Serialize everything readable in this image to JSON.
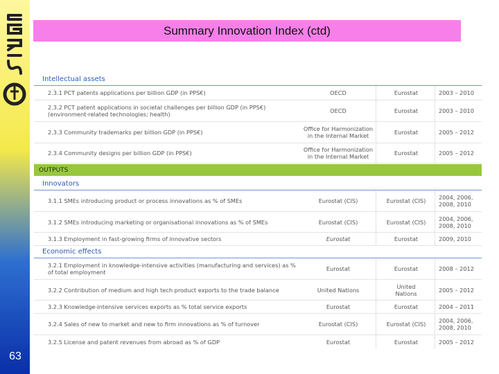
{
  "slide": {
    "title": "Summary Innovation Index (ctd)",
    "page_number": "63",
    "logo_text": "CERIS"
  },
  "table": {
    "intellectual_assets": {
      "label": "Intellectual assets",
      "rows": [
        {
          "indicator": "2.3.1 PCT patents applications per billion GDP (in PPS€)",
          "source": "OECD",
          "database": "Eurostat",
          "years": "2003 – 2010"
        },
        {
          "indicator": "2.3.2 PCT patent applications in societal challenges per billion GDP (in PPS€)\n(environment-related technologies; health)",
          "source": "OECD",
          "database": "Eurostat",
          "years": "2003 – 2010"
        },
        {
          "indicator": "2.3.3 Community trademarks per billion GDP (in PPS€)",
          "source": "Office for Harmonization\nin the Internal Market",
          "database": "Eurostat",
          "years": "2005 – 2012"
        },
        {
          "indicator": "2.3.4 Community designs per billion GDP (in PPS€)",
          "source": "Office for Harmonization\nin the Internal Market",
          "database": "Eurostat",
          "years": "2005 – 2012"
        }
      ]
    },
    "outputs_label": "OUTPUTS",
    "innovators": {
      "label": "Innovators",
      "rows": [
        {
          "indicator": "3.1.1 SMEs introducing product or process innovations as % of SMEs",
          "source": "Eurostat (CIS)",
          "database": "Eurostat (CIS)",
          "years": "2004, 2006,\n2008, 2010"
        },
        {
          "indicator": "3.1.2 SMEs introducing marketing or organisational innovations as % of SMEs",
          "source": "Eurostat (CIS)",
          "database": "Eurostat (CIS)",
          "years": "2004, 2006,\n2008, 2010"
        },
        {
          "indicator": "3.1.3 Employment in fast-growing firms of innovative sectors",
          "source": "Eurostat",
          "database": "Eurostat",
          "years": "2009, 2010"
        }
      ]
    },
    "economic_effects": {
      "label": "Economic effects",
      "rows": [
        {
          "indicator": "3.2.1 Employment in knowledge-intensive activities (manufacturing and services) as %\nof total employment",
          "source": "Eurostat",
          "database": "Eurostat",
          "years": "2008 – 2012"
        },
        {
          "indicator": "3.2.2 Contribution of medium and high tech product exports to the trade balance",
          "source": "United Nations",
          "database": "United\nNations",
          "years": "2005 – 2012"
        },
        {
          "indicator": "3.2.3 Knowledge-intensive services exports as % total service exports",
          "source": "Eurostat",
          "database": "Eurostat",
          "years": "2004 – 2011"
        },
        {
          "indicator": "3.2.4 Sales of new to market and new to firm innovations as % of turnover",
          "source": "Eurostat (CIS)",
          "database": "Eurostat (CIS)",
          "years": "2004, 2006,\n2008, 2010"
        },
        {
          "indicator": "3.2.5 License and patent revenues from abroad as % of GDP",
          "source": "Eurostat",
          "database": "Eurostat",
          "years": "2005 – 2012"
        }
      ]
    }
  },
  "colors": {
    "title_bar": "#f77fe9",
    "outputs_bar": "#98c73e",
    "section_text": "#2f59b3"
  }
}
